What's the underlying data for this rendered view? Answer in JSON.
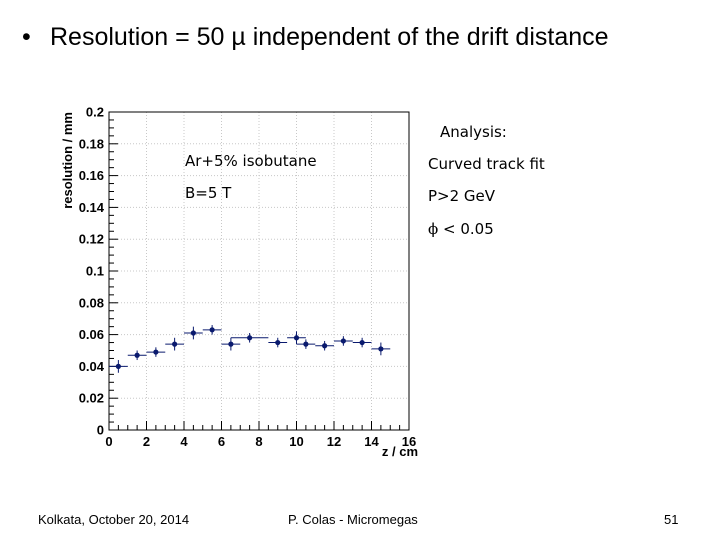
{
  "slide": {
    "title": "Resolution = 50 µ independent of the drift distance",
    "bullet": "•"
  },
  "annotations": {
    "gas": "Ar+5% isobutane",
    "field": "B=5 T",
    "analysis": "Analysis:",
    "fit": "Curved track fit",
    "momentum": "P>2 GeV",
    "phi_symbol": "ϕ",
    "phi_cut": "< 0.05"
  },
  "footer": {
    "left": "Kolkata, October 20, 2014",
    "center": "P. Colas - Micromegas",
    "page": "51"
  },
  "colors": {
    "marker": "#0a1a6e",
    "grid": "#c8c8c8",
    "axis": "#000000"
  },
  "chart_data": {
    "type": "scatter",
    "title": "",
    "xlabel": "z / cm",
    "ylabel": "resolution / mm",
    "xlim": [
      0,
      16
    ],
    "ylim": [
      0,
      0.2
    ],
    "grid": true,
    "x_ticks": [
      "0",
      "2",
      "4",
      "6",
      "8",
      "10",
      "12",
      "14",
      "16"
    ],
    "y_ticks": [
      "0",
      "0.02",
      "0.04",
      "0.06",
      "0.08",
      "0.1",
      "0.12",
      "0.14",
      "0.16",
      "0.18",
      "0.2"
    ],
    "series": [
      {
        "points": [
          {
            "x": 0.5,
            "y": 0.04,
            "xerr": 0.5,
            "yerr": 0.004
          },
          {
            "x": 1.5,
            "y": 0.047,
            "xerr": 0.5,
            "yerr": 0.003
          },
          {
            "x": 2.5,
            "y": 0.049,
            "xerr": 0.5,
            "yerr": 0.003
          },
          {
            "x": 3.5,
            "y": 0.054,
            "xerr": 0.5,
            "yerr": 0.004
          },
          {
            "x": 4.5,
            "y": 0.061,
            "xerr": 0.5,
            "yerr": 0.004
          },
          {
            "x": 5.5,
            "y": 0.063,
            "xerr": 0.5,
            "yerr": 0.003
          },
          {
            "x": 6.5,
            "y": 0.054,
            "xerr": 0.5,
            "yerr": 0.004
          },
          {
            "x": 7.5,
            "y": 0.058,
            "xerr": 1.0,
            "yerr": 0.003
          },
          {
            "x": 9.0,
            "y": 0.055,
            "xerr": 0.5,
            "yerr": 0.003
          },
          {
            "x": 10.0,
            "y": 0.058,
            "xerr": 0.5,
            "yerr": 0.004
          },
          {
            "x": 10.5,
            "y": 0.054,
            "xerr": 0.5,
            "yerr": 0.003
          },
          {
            "x": 11.5,
            "y": 0.053,
            "xerr": 0.5,
            "yerr": 0.003
          },
          {
            "x": 12.5,
            "y": 0.056,
            "xerr": 0.5,
            "yerr": 0.003
          },
          {
            "x": 13.5,
            "y": 0.055,
            "xerr": 0.5,
            "yerr": 0.003
          },
          {
            "x": 14.5,
            "y": 0.051,
            "xerr": 0.5,
            "yerr": 0.004
          }
        ]
      }
    ]
  }
}
